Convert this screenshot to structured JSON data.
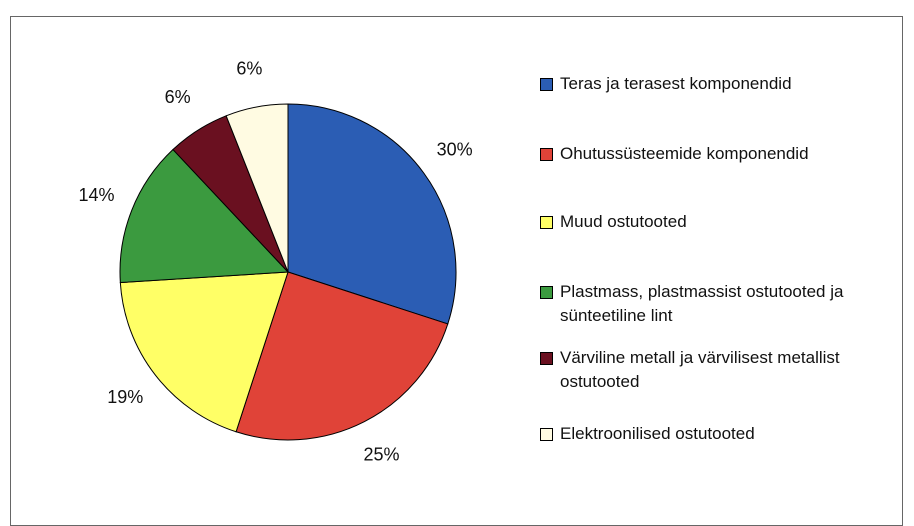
{
  "chart_data": {
    "type": "pie",
    "categories": [
      "Teras ja terasest komponendid",
      "Ohutussüsteemide komponendid",
      "Muud ostutooted",
      "Plastmass, plastmassist ostutooted ja sünteetiline lint",
      "Värviline metall ja värvilisest metallist ostutooted",
      "Elektroonilised ostutooted"
    ],
    "values": [
      30,
      25,
      19,
      14,
      6,
      6
    ],
    "value_labels": [
      "30%",
      "25%",
      "19%",
      "14%",
      "6%",
      "6%"
    ],
    "colors": [
      "#2b5db4",
      "#e04338",
      "#ffff66",
      "#3b9a3f",
      "#6a1020",
      "#fffbe2"
    ],
    "legend": "right"
  }
}
